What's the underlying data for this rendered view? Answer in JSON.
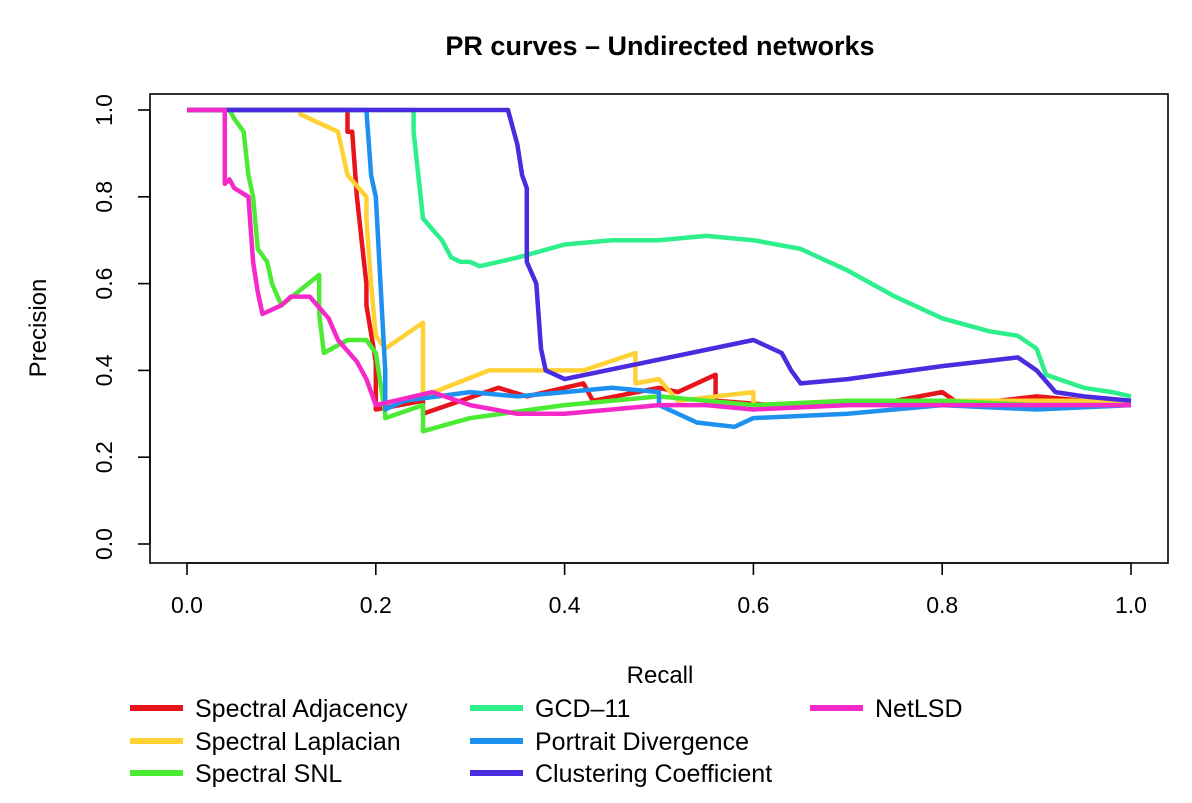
{
  "chart_data": {
    "type": "line",
    "title": "PR curves – Undirected networks",
    "xlabel": "Recall",
    "ylabel": "Precision",
    "xlim": [
      0.0,
      1.0
    ],
    "ylim": [
      0.0,
      1.0
    ],
    "xticks": [
      "0.0",
      "0.2",
      "0.4",
      "0.6",
      "0.8",
      "1.0"
    ],
    "yticks": [
      "0.0",
      "0.2",
      "0.4",
      "0.6",
      "0.8",
      "1.0"
    ],
    "grid": false,
    "legend_placement": "bottom",
    "series": [
      {
        "name": "Spectral Adjacency",
        "color": "#E8141C",
        "points": [
          [
            0,
            1
          ],
          [
            0.17,
            1
          ],
          [
            0.17,
            0.95
          ],
          [
            0.175,
            0.95
          ],
          [
            0.18,
            0.8
          ],
          [
            0.185,
            0.7
          ],
          [
            0.19,
            0.6
          ],
          [
            0.19,
            0.55
          ],
          [
            0.2,
            0.42
          ],
          [
            0.2,
            0.31
          ],
          [
            0.25,
            0.33
          ],
          [
            0.25,
            0.3
          ],
          [
            0.33,
            0.36
          ],
          [
            0.36,
            0.34
          ],
          [
            0.42,
            0.37
          ],
          [
            0.43,
            0.33
          ],
          [
            0.5,
            0.36
          ],
          [
            0.52,
            0.35
          ],
          [
            0.56,
            0.39
          ],
          [
            0.56,
            0.33
          ],
          [
            0.62,
            0.32
          ],
          [
            0.75,
            0.33
          ],
          [
            0.8,
            0.35
          ],
          [
            0.82,
            0.32
          ],
          [
            0.9,
            0.34
          ],
          [
            0.95,
            0.33
          ],
          [
            1,
            0.33
          ]
        ]
      },
      {
        "name": "Spectral Laplacian",
        "color": "#FFD135",
        "points": [
          [
            0,
            1
          ],
          [
            0.12,
            1
          ],
          [
            0.12,
            0.99
          ],
          [
            0.16,
            0.95
          ],
          [
            0.17,
            0.85
          ],
          [
            0.19,
            0.8
          ],
          [
            0.19,
            0.75
          ],
          [
            0.195,
            0.6
          ],
          [
            0.2,
            0.48
          ],
          [
            0.21,
            0.45
          ],
          [
            0.25,
            0.51
          ],
          [
            0.25,
            0.34
          ],
          [
            0.32,
            0.4
          ],
          [
            0.42,
            0.4
          ],
          [
            0.475,
            0.44
          ],
          [
            0.475,
            0.37
          ],
          [
            0.5,
            0.38
          ],
          [
            0.52,
            0.33
          ],
          [
            0.6,
            0.35
          ],
          [
            0.6,
            0.32
          ],
          [
            0.7,
            0.33
          ],
          [
            0.85,
            0.33
          ],
          [
            0.95,
            0.33
          ],
          [
            1,
            0.33
          ]
        ]
      },
      {
        "name": "Spectral SNL",
        "color": "#4BEB33",
        "points": [
          [
            0,
            1
          ],
          [
            0.045,
            1
          ],
          [
            0.05,
            0.98
          ],
          [
            0.06,
            0.95
          ],
          [
            0.065,
            0.85
          ],
          [
            0.07,
            0.8
          ],
          [
            0.075,
            0.68
          ],
          [
            0.085,
            0.65
          ],
          [
            0.09,
            0.6
          ],
          [
            0.1,
            0.55
          ],
          [
            0.14,
            0.62
          ],
          [
            0.14,
            0.53
          ],
          [
            0.145,
            0.44
          ],
          [
            0.17,
            0.47
          ],
          [
            0.19,
            0.47
          ],
          [
            0.2,
            0.44
          ],
          [
            0.21,
            0.3
          ],
          [
            0.21,
            0.29
          ],
          [
            0.25,
            0.32
          ],
          [
            0.25,
            0.26
          ],
          [
            0.3,
            0.29
          ],
          [
            0.4,
            0.32
          ],
          [
            0.5,
            0.34
          ],
          [
            0.6,
            0.32
          ],
          [
            0.7,
            0.33
          ],
          [
            0.8,
            0.33
          ],
          [
            0.9,
            0.32
          ],
          [
            1,
            0.32
          ]
        ]
      },
      {
        "name": "GCD–11",
        "color": "#2DEF8C",
        "points": [
          [
            0,
            1
          ],
          [
            0.24,
            1
          ],
          [
            0.24,
            0.95
          ],
          [
            0.245,
            0.85
          ],
          [
            0.25,
            0.75
          ],
          [
            0.27,
            0.7
          ],
          [
            0.28,
            0.66
          ],
          [
            0.29,
            0.65
          ],
          [
            0.3,
            0.65
          ],
          [
            0.31,
            0.64
          ],
          [
            0.35,
            0.66
          ],
          [
            0.4,
            0.69
          ],
          [
            0.45,
            0.7
          ],
          [
            0.5,
            0.7
          ],
          [
            0.55,
            0.71
          ],
          [
            0.6,
            0.7
          ],
          [
            0.65,
            0.68
          ],
          [
            0.7,
            0.63
          ],
          [
            0.75,
            0.57
          ],
          [
            0.8,
            0.52
          ],
          [
            0.85,
            0.49
          ],
          [
            0.88,
            0.48
          ],
          [
            0.9,
            0.45
          ],
          [
            0.91,
            0.39
          ],
          [
            0.95,
            0.36
          ],
          [
            0.98,
            0.35
          ],
          [
            1,
            0.34
          ]
        ]
      },
      {
        "name": "Portrait Divergence",
        "color": "#1E90F0",
        "points": [
          [
            0,
            1
          ],
          [
            0.19,
            1
          ],
          [
            0.195,
            0.85
          ],
          [
            0.2,
            0.8
          ],
          [
            0.205,
            0.6
          ],
          [
            0.21,
            0.4
          ],
          [
            0.21,
            0.31
          ],
          [
            0.23,
            0.33
          ],
          [
            0.3,
            0.35
          ],
          [
            0.35,
            0.34
          ],
          [
            0.4,
            0.35
          ],
          [
            0.45,
            0.36
          ],
          [
            0.5,
            0.35
          ],
          [
            0.5,
            0.32
          ],
          [
            0.54,
            0.28
          ],
          [
            0.58,
            0.27
          ],
          [
            0.6,
            0.29
          ],
          [
            0.7,
            0.3
          ],
          [
            0.8,
            0.32
          ],
          [
            0.9,
            0.31
          ],
          [
            1,
            0.32
          ]
        ]
      },
      {
        "name": "Clustering Coefficient",
        "color": "#4A2BE0",
        "points": [
          [
            0,
            1
          ],
          [
            0.34,
            1
          ],
          [
            0.345,
            0.96
          ],
          [
            0.35,
            0.92
          ],
          [
            0.355,
            0.85
          ],
          [
            0.36,
            0.82
          ],
          [
            0.36,
            0.65
          ],
          [
            0.37,
            0.6
          ],
          [
            0.375,
            0.45
          ],
          [
            0.38,
            0.4
          ],
          [
            0.39,
            0.39
          ],
          [
            0.4,
            0.38
          ],
          [
            0.6,
            0.47
          ],
          [
            0.63,
            0.44
          ],
          [
            0.64,
            0.4
          ],
          [
            0.65,
            0.37
          ],
          [
            0.7,
            0.38
          ],
          [
            0.8,
            0.41
          ],
          [
            0.88,
            0.43
          ],
          [
            0.9,
            0.4
          ],
          [
            0.92,
            0.35
          ],
          [
            0.95,
            0.34
          ],
          [
            1,
            0.33
          ]
        ]
      },
      {
        "name": "NetLSD",
        "color": "#F528C8",
        "points": [
          [
            0,
            1
          ],
          [
            0.04,
            1
          ],
          [
            0.04,
            0.83
          ],
          [
            0.045,
            0.84
          ],
          [
            0.05,
            0.82
          ],
          [
            0.065,
            0.8
          ],
          [
            0.07,
            0.65
          ],
          [
            0.075,
            0.58
          ],
          [
            0.08,
            0.53
          ],
          [
            0.1,
            0.55
          ],
          [
            0.11,
            0.57
          ],
          [
            0.13,
            0.57
          ],
          [
            0.15,
            0.52
          ],
          [
            0.16,
            0.47
          ],
          [
            0.18,
            0.42
          ],
          [
            0.19,
            0.38
          ],
          [
            0.2,
            0.32
          ],
          [
            0.22,
            0.33
          ],
          [
            0.26,
            0.35
          ],
          [
            0.3,
            0.32
          ],
          [
            0.35,
            0.3
          ],
          [
            0.4,
            0.3
          ],
          [
            0.45,
            0.31
          ],
          [
            0.5,
            0.32
          ],
          [
            0.55,
            0.32
          ],
          [
            0.6,
            0.31
          ],
          [
            0.7,
            0.32
          ],
          [
            0.8,
            0.32
          ],
          [
            0.9,
            0.32
          ],
          [
            1,
            0.32
          ]
        ]
      }
    ]
  }
}
